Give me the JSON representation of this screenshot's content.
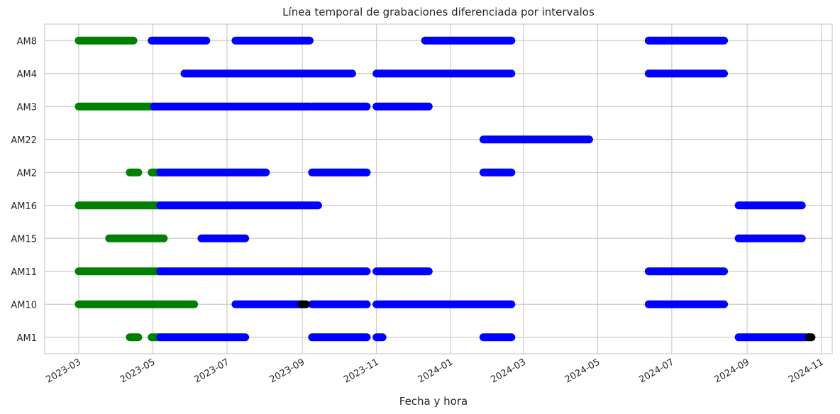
{
  "chart_data": {
    "type": "scatter",
    "title": "Línea temporal de grabaciones diferenciada por intervalos",
    "xlabel": "Fecha y hora",
    "ylabel": "",
    "xlim": [
      "2023-02-01",
      "2024-11-10"
    ],
    "x_ticks": [
      "2023-03-01",
      "2023-05-01",
      "2023-07-01",
      "2023-09-01",
      "2023-11-01",
      "2024-01-01",
      "2024-03-01",
      "2024-05-01",
      "2024-07-01",
      "2024-09-01",
      "2024-11-01"
    ],
    "x_tick_labels": [
      "2023-03",
      "2023-05",
      "2023-07",
      "2023-09",
      "2023-11",
      "2024-01",
      "2024-03",
      "2024-05",
      "2024-07",
      "2024-09",
      "2024-11"
    ],
    "categories": [
      "AM1",
      "AM10",
      "AM11",
      "AM15",
      "AM16",
      "AM2",
      "AM22",
      "AM3",
      "AM4",
      "AM8"
    ],
    "grid": true,
    "colors": {
      "green": "#008000",
      "blue": "#0000ff",
      "black": "#000000"
    },
    "series": [
      {
        "values": [
          {
            "y": "AM8",
            "start": "2023-03-01",
            "end": "2023-04-15"
          },
          {
            "y": "AM3",
            "start": "2023-03-01",
            "end": "2023-05-02"
          },
          {
            "y": "AM2",
            "start": "2023-04-12",
            "end": "2023-04-19"
          },
          {
            "y": "AM2",
            "start": "2023-04-30",
            "end": "2023-05-07"
          },
          {
            "y": "AM16",
            "start": "2023-03-01",
            "end": "2023-05-07"
          },
          {
            "y": "AM15",
            "start": "2023-03-26",
            "end": "2023-05-10"
          },
          {
            "y": "AM11",
            "start": "2023-03-01",
            "end": "2023-05-07"
          },
          {
            "y": "AM10",
            "start": "2023-03-01",
            "end": "2023-06-04"
          },
          {
            "y": "AM1",
            "start": "2023-04-12",
            "end": "2023-04-19"
          },
          {
            "y": "AM1",
            "start": "2023-04-30",
            "end": "2023-05-07"
          }
        ]
      },
      {
        "values": [
          {
            "y": "AM8",
            "start": "2023-04-30",
            "end": "2023-06-14"
          },
          {
            "y": "AM8",
            "start": "2023-07-08",
            "end": "2023-09-07"
          },
          {
            "y": "AM8",
            "start": "2023-12-11",
            "end": "2024-02-20"
          },
          {
            "y": "AM8",
            "start": "2024-06-12",
            "end": "2024-08-13"
          },
          {
            "y": "AM4",
            "start": "2023-05-27",
            "end": "2023-10-12"
          },
          {
            "y": "AM4",
            "start": "2023-11-01",
            "end": "2024-02-20"
          },
          {
            "y": "AM4",
            "start": "2024-06-12",
            "end": "2024-08-13"
          },
          {
            "y": "AM3",
            "start": "2023-05-02",
            "end": "2023-09-07"
          },
          {
            "y": "AM3",
            "start": "2023-09-09",
            "end": "2023-10-24"
          },
          {
            "y": "AM3",
            "start": "2023-11-01",
            "end": "2023-12-14"
          },
          {
            "y": "AM22",
            "start": "2024-01-28",
            "end": "2024-04-24"
          },
          {
            "y": "AM2",
            "start": "2023-05-07",
            "end": "2023-08-02"
          },
          {
            "y": "AM2",
            "start": "2023-09-09",
            "end": "2023-10-24"
          },
          {
            "y": "AM2",
            "start": "2024-01-28",
            "end": "2024-02-20"
          },
          {
            "y": "AM16",
            "start": "2023-05-07",
            "end": "2023-09-14"
          },
          {
            "y": "AM16",
            "start": "2024-08-25",
            "end": "2024-10-16"
          },
          {
            "y": "AM15",
            "start": "2023-06-10",
            "end": "2023-07-16"
          },
          {
            "y": "AM15",
            "start": "2024-08-25",
            "end": "2024-10-16"
          },
          {
            "y": "AM11",
            "start": "2023-05-07",
            "end": "2023-10-24"
          },
          {
            "y": "AM11",
            "start": "2023-11-01",
            "end": "2023-12-14"
          },
          {
            "y": "AM11",
            "start": "2024-06-12",
            "end": "2024-08-13"
          },
          {
            "y": "AM10",
            "start": "2023-07-08",
            "end": "2023-08-31"
          },
          {
            "y": "AM10",
            "start": "2023-09-09",
            "end": "2023-10-24"
          },
          {
            "y": "AM10",
            "start": "2023-11-01",
            "end": "2024-02-20"
          },
          {
            "y": "AM10",
            "start": "2024-06-12",
            "end": "2024-08-13"
          },
          {
            "y": "AM1",
            "start": "2023-05-07",
            "end": "2023-07-16"
          },
          {
            "y": "AM1",
            "start": "2023-09-09",
            "end": "2023-10-24"
          },
          {
            "y": "AM1",
            "start": "2023-11-01",
            "end": "2023-11-06"
          },
          {
            "y": "AM1",
            "start": "2024-01-28",
            "end": "2024-02-20"
          },
          {
            "y": "AM1",
            "start": "2024-08-25",
            "end": "2024-10-22"
          }
        ]
      },
      {
        "values": [
          {
            "y": "AM10",
            "start": "2023-08-31",
            "end": "2023-09-04"
          },
          {
            "y": "AM1",
            "start": "2024-10-22",
            "end": "2024-10-24"
          }
        ]
      }
    ]
  }
}
